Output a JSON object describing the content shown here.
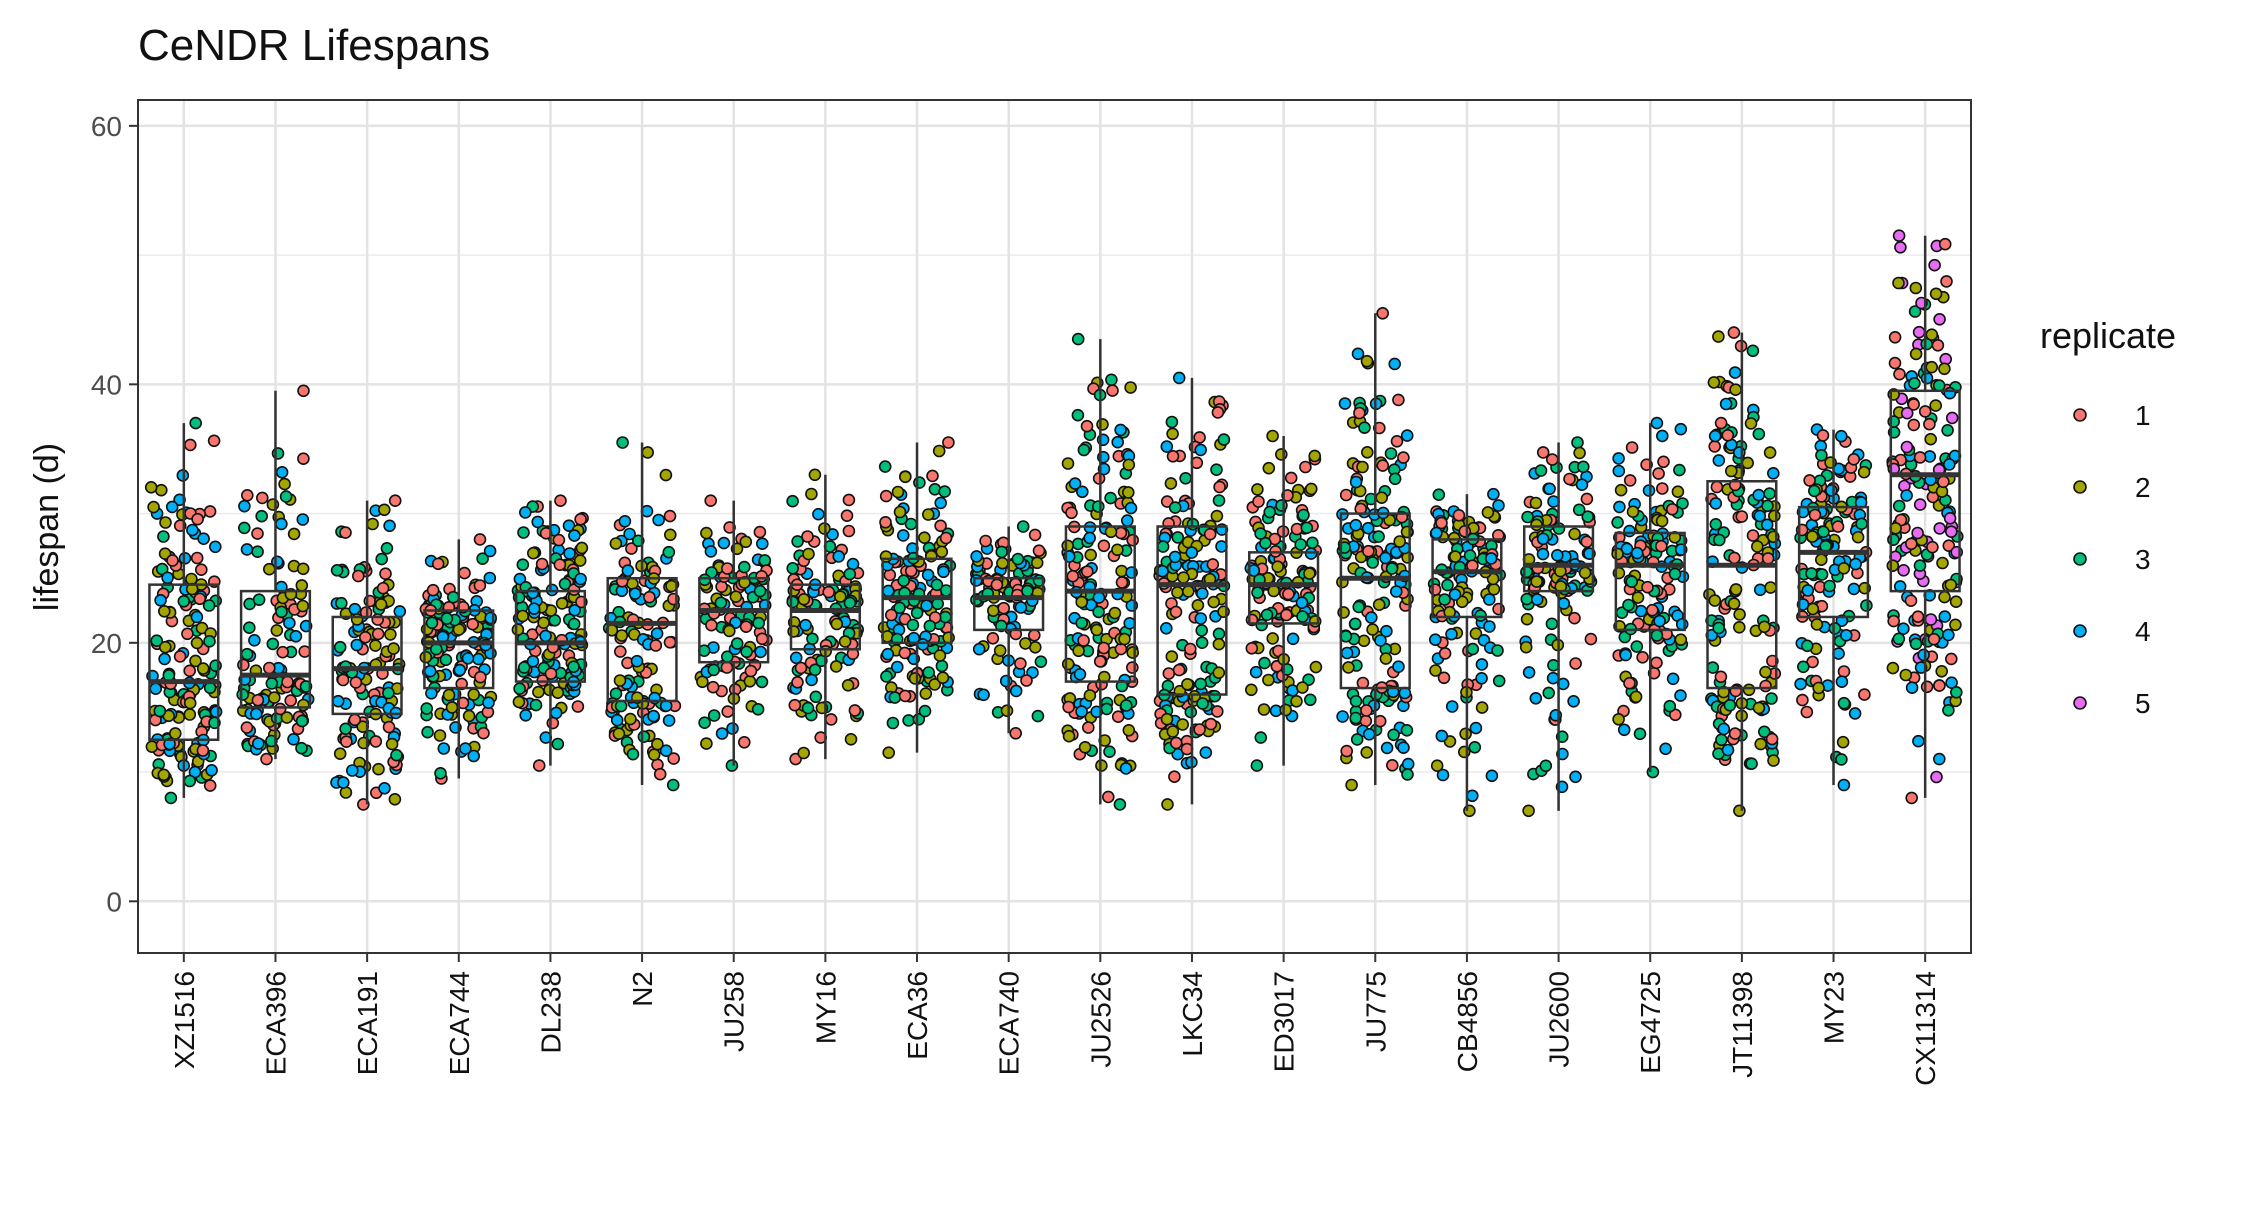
{
  "chart_data": {
    "type": "boxplot-jitter",
    "title": "CeNDR Lifespans",
    "xlabel": "",
    "ylabel": "lifespan (d)",
    "ylim": [
      -4,
      62
    ],
    "yticks": [
      0,
      20,
      40,
      60
    ],
    "grid": true,
    "legend": {
      "title": "replicate",
      "placement": "right",
      "entries": [
        {
          "label": "1",
          "color": "#F8766D"
        },
        {
          "label": "2",
          "color": "#A3A500"
        },
        {
          "label": "3",
          "color": "#00BF7D"
        },
        {
          "label": "4",
          "color": "#00B0F6"
        },
        {
          "label": "5",
          "color": "#E76BF3"
        }
      ]
    },
    "categories": [
      "XZ1516",
      "ECA396",
      "ECA191",
      "ECA744",
      "DL238",
      "N2",
      "JU258",
      "MY16",
      "ECA36",
      "ECA740",
      "JU2526",
      "LKC34",
      "ED3017",
      "JU775",
      "CB4856",
      "JU2600",
      "EG4725",
      "JT11398",
      "MY23",
      "CX11314"
    ],
    "boxes": [
      {
        "min": 8,
        "q1": 12.5,
        "median": 17,
        "q3": 24.5,
        "max": 37,
        "n": 160
      },
      {
        "min": 11,
        "q1": 15,
        "median": 17.5,
        "q3": 24,
        "max": 39.5,
        "n": 120
      },
      {
        "min": 7.5,
        "q1": 14.5,
        "median": 18,
        "q3": 22,
        "max": 31,
        "n": 130
      },
      {
        "min": 9.5,
        "q1": 16.5,
        "median": 20,
        "q3": 22.5,
        "max": 28,
        "n": 140
      },
      {
        "min": 10.5,
        "q1": 17,
        "median": 20,
        "q3": 24,
        "max": 31,
        "n": 150
      },
      {
        "min": 9,
        "q1": 15.5,
        "median": 21.5,
        "q3": 25,
        "max": 35.5,
        "n": 130
      },
      {
        "min": 10.5,
        "q1": 18.5,
        "median": 22.5,
        "q3": 25,
        "max": 31,
        "n": 110
      },
      {
        "min": 11,
        "q1": 19.5,
        "median": 22.5,
        "q3": 24.5,
        "max": 33,
        "n": 120
      },
      {
        "min": 11.5,
        "q1": 20,
        "median": 23.5,
        "q3": 26.5,
        "max": 35.5,
        "n": 150
      },
      {
        "min": 13,
        "q1": 21,
        "median": 23.5,
        "q3": 25,
        "max": 29,
        "n": 110
      },
      {
        "min": 7.5,
        "q1": 17,
        "median": 24,
        "q3": 29,
        "max": 43.5,
        "n": 170
      },
      {
        "min": 7.5,
        "q1": 16,
        "median": 24.5,
        "q3": 29,
        "max": 40.5,
        "n": 170
      },
      {
        "min": 10.5,
        "q1": 21.5,
        "median": 24.5,
        "q3": 27,
        "max": 36,
        "n": 140
      },
      {
        "min": 9,
        "q1": 16.5,
        "median": 25,
        "q3": 30,
        "max": 45.5,
        "n": 180
      },
      {
        "min": 7,
        "q1": 22,
        "median": 25.5,
        "q3": 28,
        "max": 31.5,
        "n": 130
      },
      {
        "min": 7,
        "q1": 24,
        "median": 26,
        "q3": 29,
        "max": 35.5,
        "n": 130
      },
      {
        "min": 10,
        "q1": 21,
        "median": 26,
        "q3": 28.5,
        "max": 37,
        "n": 140
      },
      {
        "min": 7,
        "q1": 16.5,
        "median": 26,
        "q3": 32.5,
        "max": 44,
        "n": 160
      },
      {
        "min": 9,
        "q1": 22,
        "median": 27,
        "q3": 30.5,
        "max": 36.5,
        "n": 140
      },
      {
        "min": 8,
        "q1": 24,
        "median": 33,
        "q3": 39.5,
        "max": 51.5,
        "n": 180
      }
    ]
  }
}
